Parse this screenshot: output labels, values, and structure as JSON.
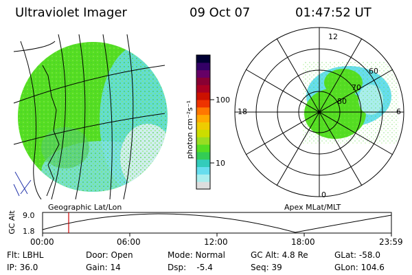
{
  "header": {
    "instrument": "Ultraviolet Imager",
    "date": "09 Oct 07",
    "time": "01:47:52 UT"
  },
  "colorbar": {
    "unit_label": "photon cm⁻²s⁻¹",
    "ticks": [
      "100",
      "10"
    ],
    "colors": [
      "#000033",
      "#330066",
      "#660066",
      "#880033",
      "#aa0022",
      "#cc1100",
      "#ee3300",
      "#ff7700",
      "#ffaa00",
      "#eecc00",
      "#ccdd00",
      "#99dd22",
      "#55dd22",
      "#33cc55",
      "#33ccbb",
      "#66ddee",
      "#aaeeee",
      "#dddddd"
    ]
  },
  "left_map": {
    "caption": "Geographic Lat/Lon",
    "dominant_color": "#55dd22",
    "secondary_color": "#66ddee"
  },
  "right_map": {
    "caption": "Apex MLat/MLT",
    "mlt_labels": [
      "12",
      "18",
      "6",
      "0"
    ],
    "mlat_labels": [
      "60",
      "70",
      "80"
    ]
  },
  "altitude_plot": {
    "ylabel": "GC Alt",
    "yticks": [
      "9.0",
      "1.8"
    ],
    "xticks": [
      "00:00",
      "06:00",
      "12:00",
      "18:00",
      "23:59"
    ],
    "marker_color": "#cc0000"
  },
  "status": {
    "row1": [
      "Flt: LBHL",
      "Door: Open",
      "Mode: Normal",
      "GC Alt: 4.8 Re",
      "GLat: -58.0"
    ],
    "row2": [
      "IP: 36.0",
      "Gain: 14",
      "Dsp:    -5.4",
      "Seq: 39",
      "GLon: 104.6"
    ]
  }
}
